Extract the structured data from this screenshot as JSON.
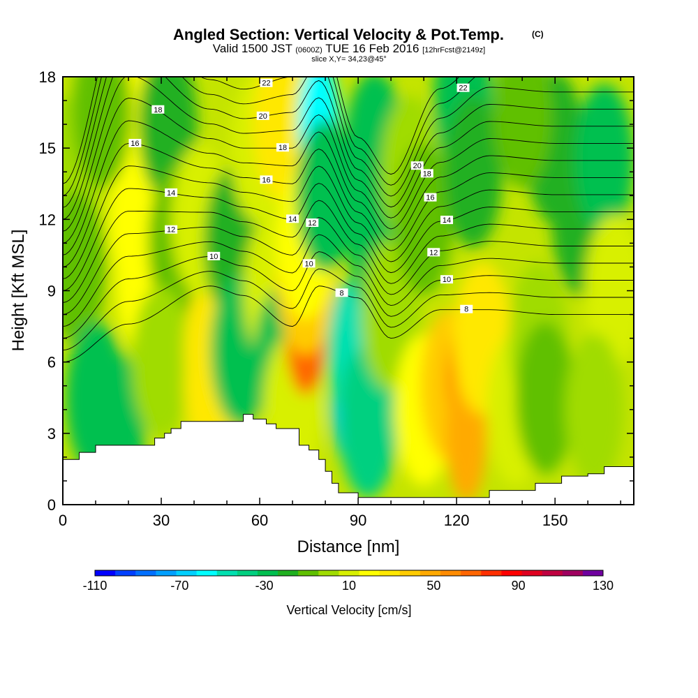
{
  "chart_data": {
    "type": "heatmap",
    "title": "Angled Section: Vertical Velocity & Pot.Temp.",
    "title_unit": "(C)",
    "subtitle_parts": {
      "valid": "Valid 1500 JST",
      "utc": "(0600Z)",
      "date": "TUE 16 Feb 2016",
      "forecast": "[12hrFcst@2149z]"
    },
    "slice_label": "slice X,Y= 34,23@45°",
    "xlabel": "Distance [nm]",
    "ylabel": "Height [Kft MSL]",
    "xlim": [
      0,
      174
    ],
    "ylim": [
      0,
      18
    ],
    "x_ticks": [
      0,
      30,
      60,
      90,
      120,
      150
    ],
    "y_ticks": [
      0,
      3,
      6,
      9,
      12,
      15,
      18
    ],
    "grid": false,
    "colorbar": {
      "title": "Vertical Velocity [cm/s]",
      "min": -110,
      "max": 130,
      "step": 10,
      "tick_values": [
        -110,
        -70,
        -30,
        10,
        50,
        90,
        130
      ],
      "colors": [
        "#0000ff",
        "#0040ff",
        "#0070ff",
        "#00a0ff",
        "#00d0ff",
        "#00ffff",
        "#00e0b0",
        "#00d080",
        "#00c050",
        "#20b020",
        "#60c000",
        "#a0dc00",
        "#d8f000",
        "#ffff00",
        "#ffe800",
        "#ffcc00",
        "#ffaa00",
        "#ff8c00",
        "#ff6600",
        "#ff3000",
        "#ff0000",
        "#e00020",
        "#c00040",
        "#a00060",
        "#7000a0"
      ]
    },
    "velocity_cells": [
      {
        "x": 2,
        "z": 14.0,
        "w": 0
      },
      {
        "x": 4,
        "z": 10.0,
        "w": -5
      },
      {
        "x": 20,
        "z": 16.0,
        "w": 22
      },
      {
        "x": 23,
        "z": 12.0,
        "w": 28
      },
      {
        "x": 25,
        "z": 9.5,
        "w": 20
      },
      {
        "x": 10,
        "z": 4.5,
        "w": -22
      },
      {
        "x": 16,
        "z": 3.2,
        "w": -28
      },
      {
        "x": 32,
        "z": 16.0,
        "w": -20
      },
      {
        "x": 35,
        "z": 11.0,
        "w": -10
      },
      {
        "x": 30,
        "z": 6.0,
        "w": 5
      },
      {
        "x": 46,
        "z": 6.5,
        "w": 30
      },
      {
        "x": 46,
        "z": 5.0,
        "w": 36
      },
      {
        "x": 42,
        "z": 12.0,
        "w": 10
      },
      {
        "x": 52,
        "z": 11.0,
        "w": -15
      },
      {
        "x": 54,
        "z": 6.5,
        "w": -25
      },
      {
        "x": 60,
        "z": 15.0,
        "w": 12
      },
      {
        "x": 64,
        "z": 9.0,
        "w": 10
      },
      {
        "x": 67,
        "z": 6.0,
        "w": -22
      },
      {
        "x": 70,
        "z": 4.0,
        "w": 15
      },
      {
        "x": 67,
        "z": 16.0,
        "w": 30
      },
      {
        "x": 74,
        "z": 7.5,
        "w": 70
      },
      {
        "x": 74,
        "z": 9.5,
        "w": 40
      },
      {
        "x": 74,
        "z": 11.0,
        "w": 20
      },
      {
        "x": 78,
        "z": 16.0,
        "w": -60
      },
      {
        "x": 80,
        "z": 13.0,
        "w": -25
      },
      {
        "x": 88,
        "z": 4.5,
        "w": -65
      },
      {
        "x": 87,
        "z": 6.5,
        "w": -45
      },
      {
        "x": 93,
        "z": 3.5,
        "w": -35
      },
      {
        "x": 96,
        "z": 11.0,
        "w": -30
      },
      {
        "x": 95,
        "z": 15.0,
        "w": -22
      },
      {
        "x": 100,
        "z": 8.0,
        "w": 0
      },
      {
        "x": 106,
        "z": 14.0,
        "w": 5
      },
      {
        "x": 110,
        "z": 12.0,
        "w": -10
      },
      {
        "x": 110,
        "z": 4.0,
        "w": 22
      },
      {
        "x": 118,
        "z": 5.0,
        "w": 40
      },
      {
        "x": 123,
        "z": 5.0,
        "w": 62
      },
      {
        "x": 123,
        "z": 3.0,
        "w": 50
      },
      {
        "x": 128,
        "z": 7.0,
        "w": 35
      },
      {
        "x": 122,
        "z": 17.0,
        "w": -25
      },
      {
        "x": 125,
        "z": 14.0,
        "w": -15
      },
      {
        "x": 138,
        "z": 4.0,
        "w": 10
      },
      {
        "x": 145,
        "z": 7.0,
        "w": 5
      },
      {
        "x": 147,
        "z": 4.5,
        "w": -10
      },
      {
        "x": 150,
        "z": 15.0,
        "w": -12
      },
      {
        "x": 158,
        "z": 12.0,
        "w": -12
      },
      {
        "x": 165,
        "z": 14.5,
        "w": -25
      },
      {
        "x": 168,
        "z": 9.0,
        "w": 15
      },
      {
        "x": 162,
        "z": 4.0,
        "w": 5
      },
      {
        "x": 140,
        "z": 16.5,
        "w": -5
      },
      {
        "x": 12,
        "z": 16.5,
        "w": -8
      }
    ],
    "pot_temp_contours": {
      "levels": [
        8,
        9,
        10,
        11,
        12,
        13,
        14,
        15,
        16,
        17,
        18,
        19,
        20,
        21,
        22,
        23
      ],
      "labeled_levels": [
        8,
        10,
        12,
        14,
        16,
        18,
        20,
        22
      ],
      "anchors_x": [
        0,
        20,
        45,
        55,
        70,
        78,
        90,
        100,
        115,
        130,
        150,
        174
      ],
      "base_height": [
        6.0,
        7.6,
        9.2,
        8.8,
        7.5,
        9.2,
        8.7,
        7.0,
        8.2,
        8.2,
        8.0,
        8.0
      ],
      "spacing": [
        0.5,
        0.95,
        0.62,
        0.62,
        0.75,
        0.72,
        0.45,
        0.46,
        0.62,
        0.72,
        0.72,
        0.72
      ]
    },
    "terrain": {
      "x": [
        0,
        2,
        5,
        10,
        14,
        18,
        26,
        28,
        31,
        33,
        36,
        40,
        45,
        50,
        55,
        58,
        62,
        65,
        69,
        72,
        75,
        78,
        80,
        82,
        84,
        90,
        96,
        100,
        110,
        120,
        130,
        140,
        144,
        148,
        152,
        156,
        160,
        165,
        170,
        174
      ],
      "z": [
        1.9,
        1.9,
        2.2,
        2.5,
        2.5,
        2.5,
        2.5,
        2.8,
        3.0,
        3.2,
        3.5,
        3.5,
        3.5,
        3.5,
        3.8,
        3.6,
        3.4,
        3.2,
        3.2,
        2.5,
        2.3,
        1.9,
        1.4,
        0.9,
        0.5,
        0.3,
        0.3,
        0.3,
        0.3,
        0.3,
        0.6,
        0.6,
        0.9,
        0.9,
        1.2,
        1.2,
        1.3,
        1.6,
        1.6,
        1.6
      ]
    }
  }
}
